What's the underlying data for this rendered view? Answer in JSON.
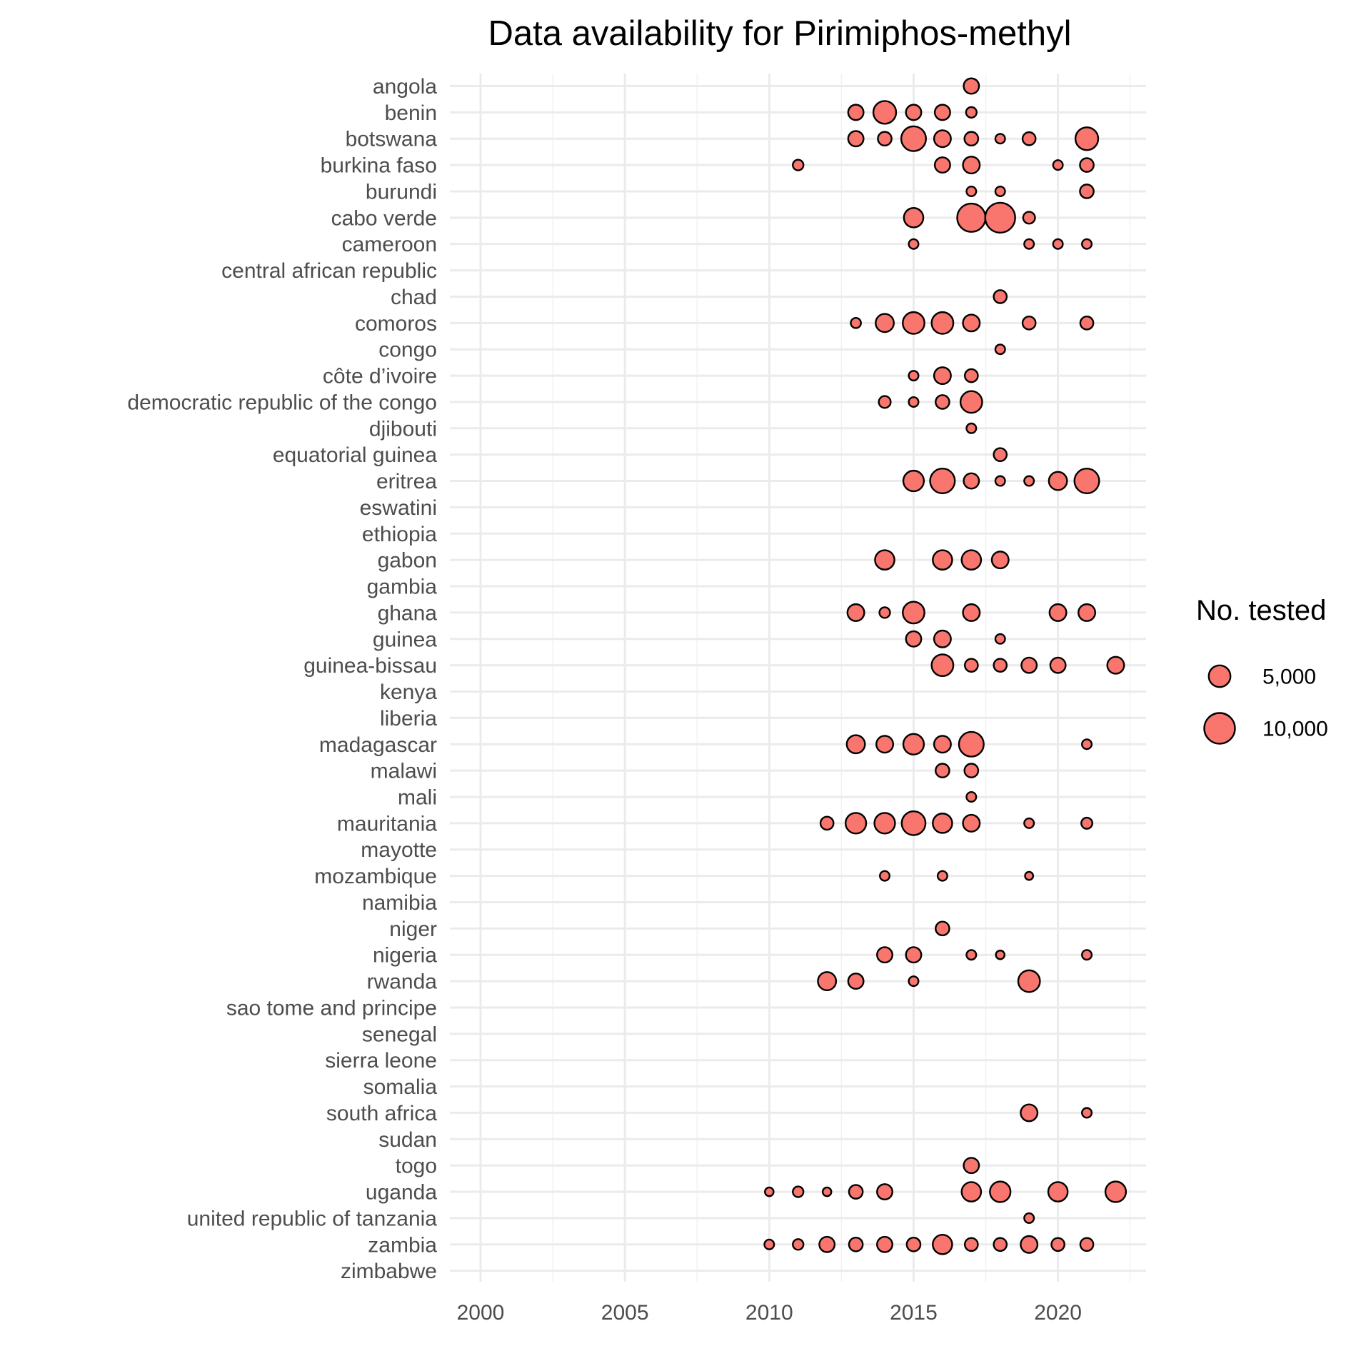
{
  "chart_data": {
    "type": "scatter",
    "title": "Data availability for Pirimiphos-methyl",
    "xlabel": "",
    "ylabel": "",
    "xlim": [
      1999,
      2023
    ],
    "x_ticks": [
      2000,
      2005,
      2010,
      2015,
      2020
    ],
    "grid": true,
    "legend_position": "right",
    "legend": {
      "title": "No. tested",
      "entries": [
        {
          "label": "5,000",
          "value": 5000
        },
        {
          "label": "10,000",
          "value": 10000
        }
      ]
    },
    "colors": {
      "fill": "#f8766d",
      "stroke": "#000000"
    },
    "countries": [
      "angola",
      "benin",
      "botswana",
      "burkina faso",
      "burundi",
      "cabo verde",
      "cameroon",
      "central african republic",
      "chad",
      "comoros",
      "congo",
      "côte d’ivoire",
      "democratic republic of the congo",
      "djibouti",
      "equatorial guinea",
      "eritrea",
      "eswatini",
      "ethiopia",
      "gabon",
      "gambia",
      "ghana",
      "guinea",
      "guinea-bissau",
      "kenya",
      "liberia",
      "madagascar",
      "malawi",
      "mali",
      "mauritania",
      "mayotte",
      "mozambique",
      "namibia",
      "niger",
      "nigeria",
      "rwanda",
      "sao tome and principe",
      "senegal",
      "sierra leone",
      "somalia",
      "south africa",
      "sudan",
      "togo",
      "uganda",
      "united republic of tanzania",
      "zambia",
      "zimbabwe"
    ],
    "points": [
      {
        "country": "angola",
        "year": 2017,
        "n": 2500
      },
      {
        "country": "benin",
        "year": 2013,
        "n": 2500
      },
      {
        "country": "benin",
        "year": 2014,
        "n": 5500
      },
      {
        "country": "benin",
        "year": 2015,
        "n": 2500
      },
      {
        "country": "benin",
        "year": 2016,
        "n": 2500
      },
      {
        "country": "benin",
        "year": 2017,
        "n": 1200
      },
      {
        "country": "botswana",
        "year": 2013,
        "n": 2500
      },
      {
        "country": "botswana",
        "year": 2014,
        "n": 2000
      },
      {
        "country": "botswana",
        "year": 2015,
        "n": 6500
      },
      {
        "country": "botswana",
        "year": 2016,
        "n": 3000
      },
      {
        "country": "botswana",
        "year": 2017,
        "n": 2000
      },
      {
        "country": "botswana",
        "year": 2018,
        "n": 1000
      },
      {
        "country": "botswana",
        "year": 2019,
        "n": 1800
      },
      {
        "country": "botswana",
        "year": 2021,
        "n": 5500
      },
      {
        "country": "burkina faso",
        "year": 2011,
        "n": 1200
      },
      {
        "country": "burkina faso",
        "year": 2016,
        "n": 2500
      },
      {
        "country": "burkina faso",
        "year": 2017,
        "n": 3000
      },
      {
        "country": "burkina faso",
        "year": 2020,
        "n": 1000
      },
      {
        "country": "burkina faso",
        "year": 2021,
        "n": 2000
      },
      {
        "country": "burundi",
        "year": 2017,
        "n": 1000
      },
      {
        "country": "burundi",
        "year": 2018,
        "n": 1000
      },
      {
        "country": "burundi",
        "year": 2021,
        "n": 2000
      },
      {
        "country": "cabo verde",
        "year": 2015,
        "n": 4000
      },
      {
        "country": "cabo verde",
        "year": 2017,
        "n": 8500
      },
      {
        "country": "cabo verde",
        "year": 2018,
        "n": 9500
      },
      {
        "country": "cabo verde",
        "year": 2019,
        "n": 1500
      },
      {
        "country": "cameroon",
        "year": 2015,
        "n": 1000
      },
      {
        "country": "cameroon",
        "year": 2019,
        "n": 1000
      },
      {
        "country": "cameroon",
        "year": 2020,
        "n": 1000
      },
      {
        "country": "cameroon",
        "year": 2021,
        "n": 1000
      },
      {
        "country": "chad",
        "year": 2018,
        "n": 1800
      },
      {
        "country": "comoros",
        "year": 2013,
        "n": 1100
      },
      {
        "country": "comoros",
        "year": 2014,
        "n": 3500
      },
      {
        "country": "comoros",
        "year": 2015,
        "n": 5000
      },
      {
        "country": "comoros",
        "year": 2016,
        "n": 5000
      },
      {
        "country": "comoros",
        "year": 2017,
        "n": 3000
      },
      {
        "country": "comoros",
        "year": 2019,
        "n": 1800
      },
      {
        "country": "comoros",
        "year": 2021,
        "n": 1800
      },
      {
        "country": "congo",
        "year": 2018,
        "n": 1000
      },
      {
        "country": "côte d’ivoire",
        "year": 2015,
        "n": 1000
      },
      {
        "country": "côte d’ivoire",
        "year": 2016,
        "n": 3000
      },
      {
        "country": "côte d’ivoire",
        "year": 2017,
        "n": 1800
      },
      {
        "country": "democratic republic of the congo",
        "year": 2014,
        "n": 1500
      },
      {
        "country": "democratic republic of the congo",
        "year": 2015,
        "n": 1000
      },
      {
        "country": "democratic republic of the congo",
        "year": 2016,
        "n": 2000
      },
      {
        "country": "democratic republic of the congo",
        "year": 2017,
        "n": 5000
      },
      {
        "country": "djibouti",
        "year": 2017,
        "n": 1000
      },
      {
        "country": "equatorial guinea",
        "year": 2018,
        "n": 1800
      },
      {
        "country": "eritrea",
        "year": 2015,
        "n": 4500
      },
      {
        "country": "eritrea",
        "year": 2016,
        "n": 6500
      },
      {
        "country": "eritrea",
        "year": 2017,
        "n": 2500
      },
      {
        "country": "eritrea",
        "year": 2018,
        "n": 1000
      },
      {
        "country": "eritrea",
        "year": 2019,
        "n": 1000
      },
      {
        "country": "eritrea",
        "year": 2020,
        "n": 3500
      },
      {
        "country": "eritrea",
        "year": 2021,
        "n": 6500
      },
      {
        "country": "gabon",
        "year": 2014,
        "n": 4000
      },
      {
        "country": "gabon",
        "year": 2016,
        "n": 4000
      },
      {
        "country": "gabon",
        "year": 2017,
        "n": 4000
      },
      {
        "country": "gabon",
        "year": 2018,
        "n": 3000
      },
      {
        "country": "ghana",
        "year": 2013,
        "n": 3000
      },
      {
        "country": "ghana",
        "year": 2014,
        "n": 1200
      },
      {
        "country": "ghana",
        "year": 2015,
        "n": 5000
      },
      {
        "country": "ghana",
        "year": 2017,
        "n": 3000
      },
      {
        "country": "ghana",
        "year": 2020,
        "n": 3000
      },
      {
        "country": "ghana",
        "year": 2021,
        "n": 3000
      },
      {
        "country": "guinea",
        "year": 2015,
        "n": 2500
      },
      {
        "country": "guinea",
        "year": 2016,
        "n": 3000
      },
      {
        "country": "guinea",
        "year": 2018,
        "n": 1000
      },
      {
        "country": "guinea-bissau",
        "year": 2016,
        "n": 5000
      },
      {
        "country": "guinea-bissau",
        "year": 2017,
        "n": 1800
      },
      {
        "country": "guinea-bissau",
        "year": 2018,
        "n": 1800
      },
      {
        "country": "guinea-bissau",
        "year": 2019,
        "n": 2500
      },
      {
        "country": "guinea-bissau",
        "year": 2020,
        "n": 2500
      },
      {
        "country": "guinea-bissau",
        "year": 2022,
        "n": 3000
      },
      {
        "country": "madagascar",
        "year": 2013,
        "n": 3500
      },
      {
        "country": "madagascar",
        "year": 2014,
        "n": 3000
      },
      {
        "country": "madagascar",
        "year": 2015,
        "n": 4500
      },
      {
        "country": "madagascar",
        "year": 2016,
        "n": 3000
      },
      {
        "country": "madagascar",
        "year": 2017,
        "n": 6500
      },
      {
        "country": "madagascar",
        "year": 2021,
        "n": 1000
      },
      {
        "country": "malawi",
        "year": 2016,
        "n": 2000
      },
      {
        "country": "malawi",
        "year": 2017,
        "n": 2000
      },
      {
        "country": "mali",
        "year": 2017,
        "n": 1000
      },
      {
        "country": "mauritania",
        "year": 2012,
        "n": 1800
      },
      {
        "country": "mauritania",
        "year": 2013,
        "n": 4500
      },
      {
        "country": "mauritania",
        "year": 2014,
        "n": 4500
      },
      {
        "country": "mauritania",
        "year": 2015,
        "n": 6000
      },
      {
        "country": "mauritania",
        "year": 2016,
        "n": 4000
      },
      {
        "country": "mauritania",
        "year": 2017,
        "n": 3000
      },
      {
        "country": "mauritania",
        "year": 2019,
        "n": 1000
      },
      {
        "country": "mauritania",
        "year": 2021,
        "n": 1300
      },
      {
        "country": "mozambique",
        "year": 2014,
        "n": 1000
      },
      {
        "country": "mozambique",
        "year": 2016,
        "n": 1000
      },
      {
        "country": "mozambique",
        "year": 2019,
        "n": 700
      },
      {
        "country": "niger",
        "year": 2016,
        "n": 2000
      },
      {
        "country": "nigeria",
        "year": 2014,
        "n": 2500
      },
      {
        "country": "nigeria",
        "year": 2015,
        "n": 2500
      },
      {
        "country": "nigeria",
        "year": 2017,
        "n": 1000
      },
      {
        "country": "nigeria",
        "year": 2018,
        "n": 800
      },
      {
        "country": "nigeria",
        "year": 2021,
        "n": 1000
      },
      {
        "country": "rwanda",
        "year": 2012,
        "n": 3500
      },
      {
        "country": "rwanda",
        "year": 2013,
        "n": 2500
      },
      {
        "country": "rwanda",
        "year": 2015,
        "n": 1000
      },
      {
        "country": "rwanda",
        "year": 2019,
        "n": 5000
      },
      {
        "country": "south africa",
        "year": 2019,
        "n": 3000
      },
      {
        "country": "south africa",
        "year": 2021,
        "n": 1000
      },
      {
        "country": "togo",
        "year": 2017,
        "n": 2500
      },
      {
        "country": "uganda",
        "year": 2010,
        "n": 800
      },
      {
        "country": "uganda",
        "year": 2011,
        "n": 1200
      },
      {
        "country": "uganda",
        "year": 2012,
        "n": 800
      },
      {
        "country": "uganda",
        "year": 2013,
        "n": 2000
      },
      {
        "country": "uganda",
        "year": 2014,
        "n": 2500
      },
      {
        "country": "uganda",
        "year": 2017,
        "n": 4000
      },
      {
        "country": "uganda",
        "year": 2018,
        "n": 4500
      },
      {
        "country": "uganda",
        "year": 2020,
        "n": 4000
      },
      {
        "country": "uganda",
        "year": 2022,
        "n": 4500
      },
      {
        "country": "united republic of tanzania",
        "year": 2019,
        "n": 1000
      },
      {
        "country": "zambia",
        "year": 2010,
        "n": 1000
      },
      {
        "country": "zambia",
        "year": 2011,
        "n": 1200
      },
      {
        "country": "zambia",
        "year": 2012,
        "n": 2500
      },
      {
        "country": "zambia",
        "year": 2013,
        "n": 2000
      },
      {
        "country": "zambia",
        "year": 2014,
        "n": 2500
      },
      {
        "country": "zambia",
        "year": 2015,
        "n": 2000
      },
      {
        "country": "zambia",
        "year": 2016,
        "n": 4000
      },
      {
        "country": "zambia",
        "year": 2017,
        "n": 1800
      },
      {
        "country": "zambia",
        "year": 2018,
        "n": 1800
      },
      {
        "country": "zambia",
        "year": 2019,
        "n": 3000
      },
      {
        "country": "zambia",
        "year": 2020,
        "n": 1800
      },
      {
        "country": "zambia",
        "year": 2021,
        "n": 1800
      }
    ]
  }
}
